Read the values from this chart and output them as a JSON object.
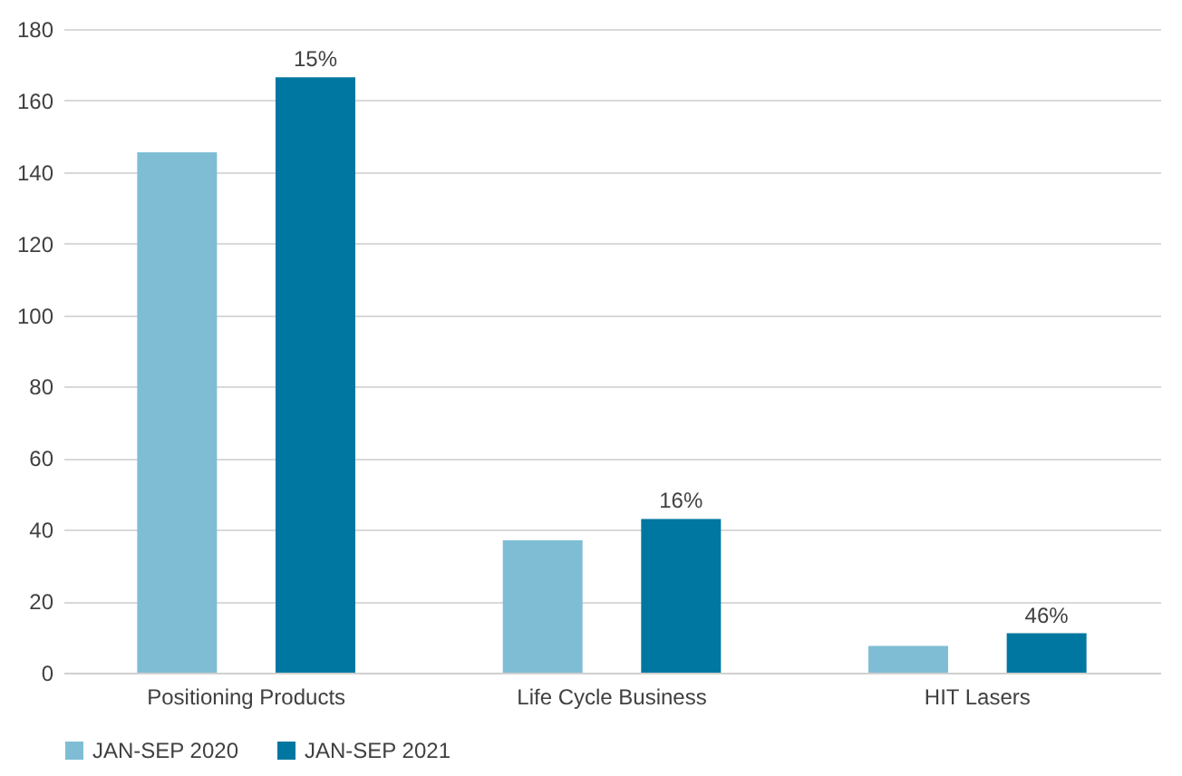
{
  "chart_data": {
    "type": "bar",
    "categories": [
      "Positioning Products",
      "Life Cycle Business",
      "HIT Lasers"
    ],
    "series": [
      {
        "name": "JAN-SEP 2020",
        "color": "#7fbdd5",
        "values": [
          145.5,
          37,
          7.5
        ]
      },
      {
        "name": "JAN-SEP 2021",
        "color": "#0077a0",
        "values": [
          166.5,
          43,
          11
        ]
      }
    ],
    "ylim": [
      0,
      180
    ],
    "yticks": [
      0,
      20,
      40,
      60,
      80,
      100,
      120,
      140,
      160,
      180
    ],
    "grid": "y",
    "legend": "bottom",
    "annotations": [
      "15%",
      "16%",
      "46%"
    ]
  }
}
